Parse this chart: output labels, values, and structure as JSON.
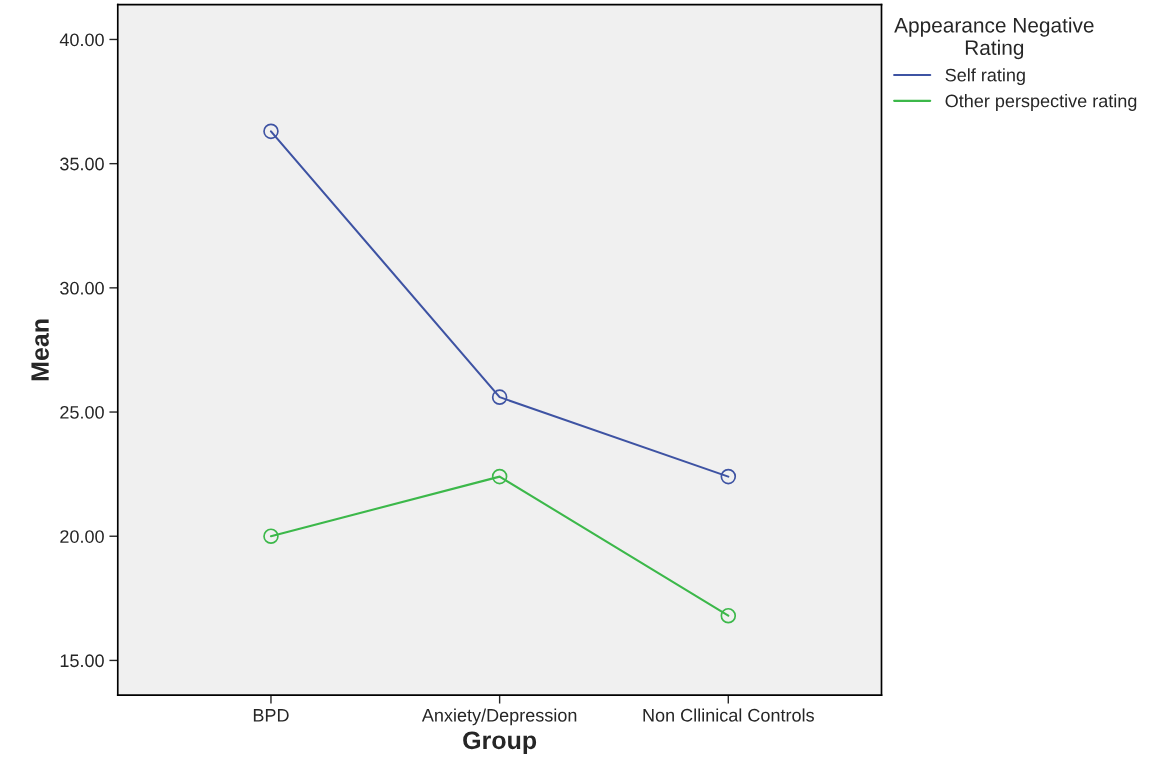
{
  "chart_data": {
    "type": "line",
    "xlabel": "Group",
    "ylabel": "Mean",
    "legend_title": "Appearance Negative\nRating",
    "categories": [
      "BPD",
      "Anxiety/Depression",
      "Non Cllinical Controls"
    ],
    "series": [
      {
        "name": "Self rating",
        "color": "#3e53a3",
        "values": [
          36.3,
          25.6,
          22.4
        ]
      },
      {
        "name": "Other perspective rating",
        "color": "#3cb84a",
        "values": [
          20.0,
          22.4,
          16.8
        ]
      }
    ],
    "ylim": [
      13.6,
      41.4
    ],
    "yticks": [
      {
        "value": 15,
        "label": "15.00"
      },
      {
        "value": 20,
        "label": "20.00"
      },
      {
        "value": 25,
        "label": "25.00"
      },
      {
        "value": 30,
        "label": "30.00"
      },
      {
        "value": 35,
        "label": "35.00"
      },
      {
        "value": 40,
        "label": "40.00"
      }
    ],
    "marker": "circle",
    "line_style": "solid",
    "grid": false,
    "legend": "top right"
  }
}
